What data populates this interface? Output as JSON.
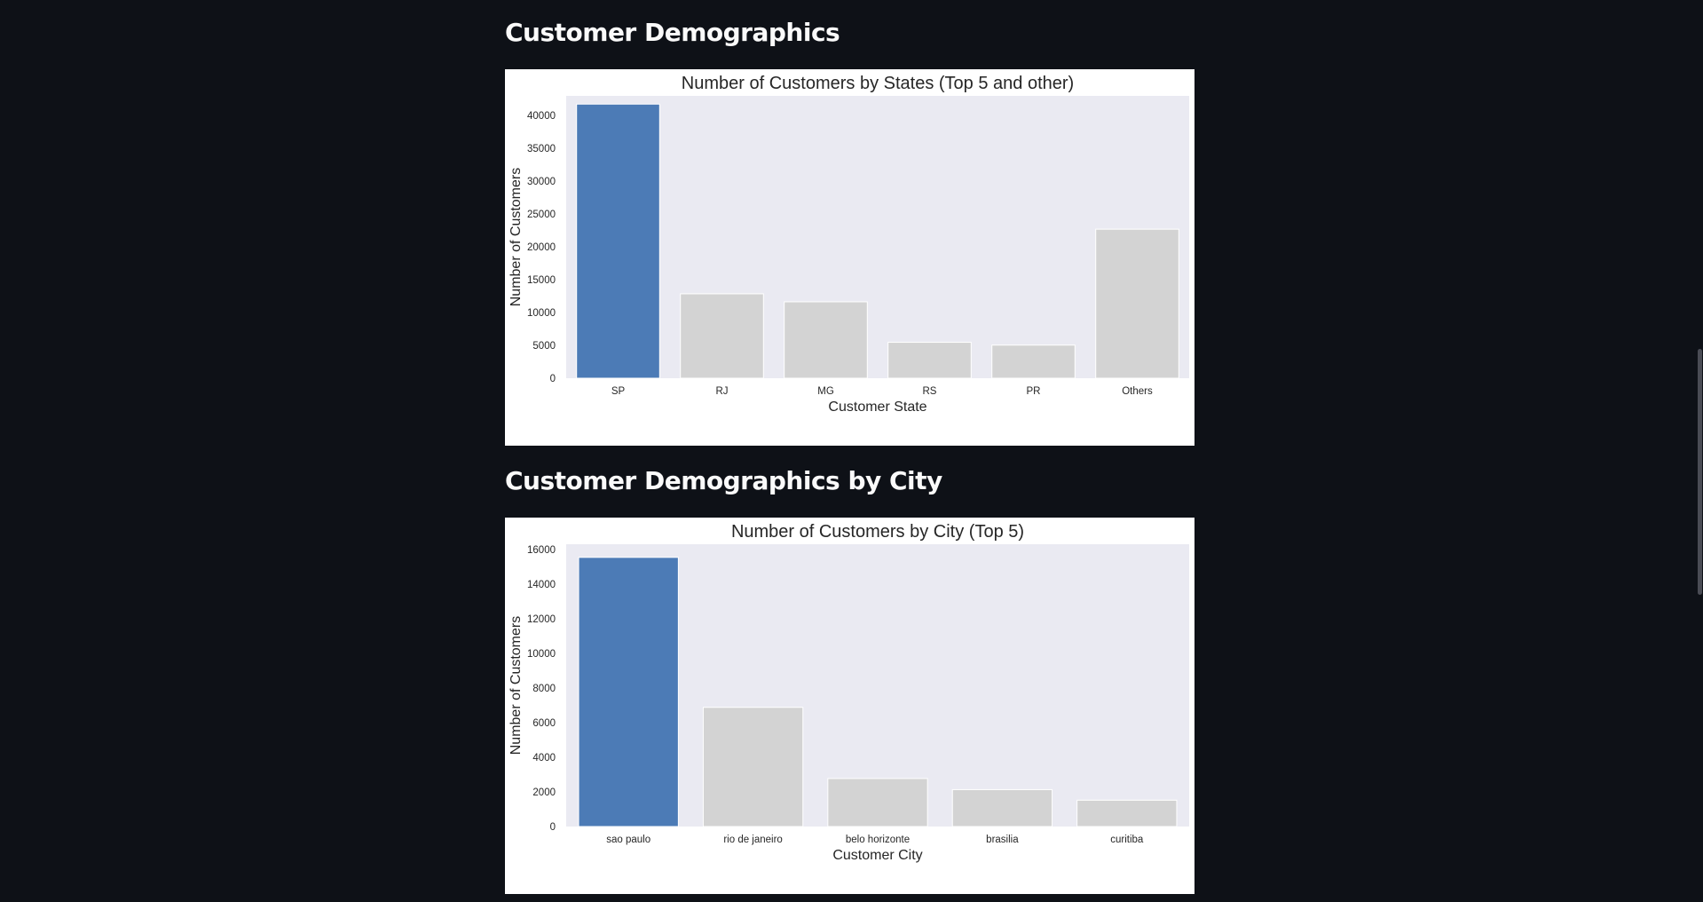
{
  "sections": [
    {
      "heading": "Customer Demographics",
      "chart_data": {
        "type": "bar",
        "title": "Number of Customers by States (Top 5 and other)",
        "xlabel": "Customer State",
        "ylabel": "Number of Customers",
        "categories": [
          "SP",
          "RJ",
          "MG",
          "RS",
          "PR",
          "Others"
        ],
        "values": [
          41746,
          12852,
          11635,
          5466,
          5045,
          22697
        ],
        "ylim": [
          0,
          43000
        ],
        "yticks": [
          0,
          5000,
          10000,
          15000,
          20000,
          25000,
          30000,
          35000,
          40000
        ],
        "highlight_index": 0,
        "highlight_color": "#4c7bb6",
        "bar_color": "#d3d3d3",
        "plot_background": "#eaeaf2",
        "grid": false
      }
    },
    {
      "heading": "Customer Demographics by City",
      "chart_data": {
        "type": "bar",
        "title": "Number of Customers by City (Top 5)",
        "xlabel": "Customer City",
        "ylabel": "Number of Customers",
        "categories": [
          "sao paulo",
          "rio de janeiro",
          "belo horizonte",
          "brasilia",
          "curitiba"
        ],
        "values": [
          15540,
          6882,
          2773,
          2131,
          1521
        ],
        "ylim": [
          0,
          16300
        ],
        "yticks": [
          0,
          2000,
          4000,
          6000,
          8000,
          10000,
          12000,
          14000,
          16000
        ],
        "highlight_index": 0,
        "highlight_color": "#4c7bb6",
        "bar_color": "#d3d3d3",
        "plot_background": "#eaeaf2",
        "grid": false
      }
    }
  ],
  "theme": {
    "app_background": "#0e1117",
    "heading_color": "#fafafa",
    "scrollbar_thumb": "#4a4c55"
  }
}
